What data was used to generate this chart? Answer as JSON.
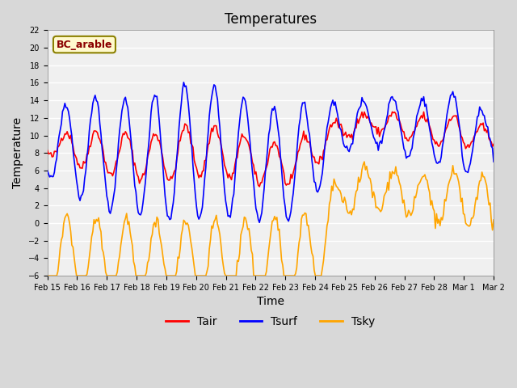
{
  "title": "Temperatures",
  "xlabel": "Time",
  "ylabel": "Temperature",
  "ylim": [
    -6,
    22
  ],
  "yticks": [
    -6,
    -4,
    -2,
    0,
    2,
    4,
    6,
    8,
    10,
    12,
    14,
    16,
    18,
    20,
    22
  ],
  "x_labels": [
    "Feb 15",
    "Feb 16",
    "Feb 17",
    "Feb 18",
    "Feb 19",
    "Feb 20",
    "Feb 21",
    "Feb 22",
    "Feb 23",
    "Feb 24",
    "Feb 25",
    "Feb 26",
    "Feb 27",
    "Feb 28",
    "Mar 1",
    "Mar 2"
  ],
  "x_tick_positions": [
    0,
    1,
    2,
    3,
    4,
    5,
    6,
    7,
    8,
    9,
    10,
    11,
    12,
    13,
    14,
    15
  ],
  "annotation": "BC_arable",
  "annotation_color": "#8B0000",
  "annotation_bg": "#FFFACD",
  "annotation_edge": "#8B8000",
  "line_Tair_color": "#FF0000",
  "line_Tsurf_color": "#0000FF",
  "line_Tsky_color": "#FFA500",
  "line_width": 1.2,
  "fig_bg_color": "#D8D8D8",
  "plot_bg_color": "#F0F0F0",
  "legend_labels": [
    "Tair",
    "Tsurf",
    "Tsky"
  ],
  "legend_colors": [
    "#FF0000",
    "#0000FF",
    "#FFA500"
  ],
  "title_fontsize": 12,
  "label_fontsize": 10,
  "tick_fontsize": 7
}
